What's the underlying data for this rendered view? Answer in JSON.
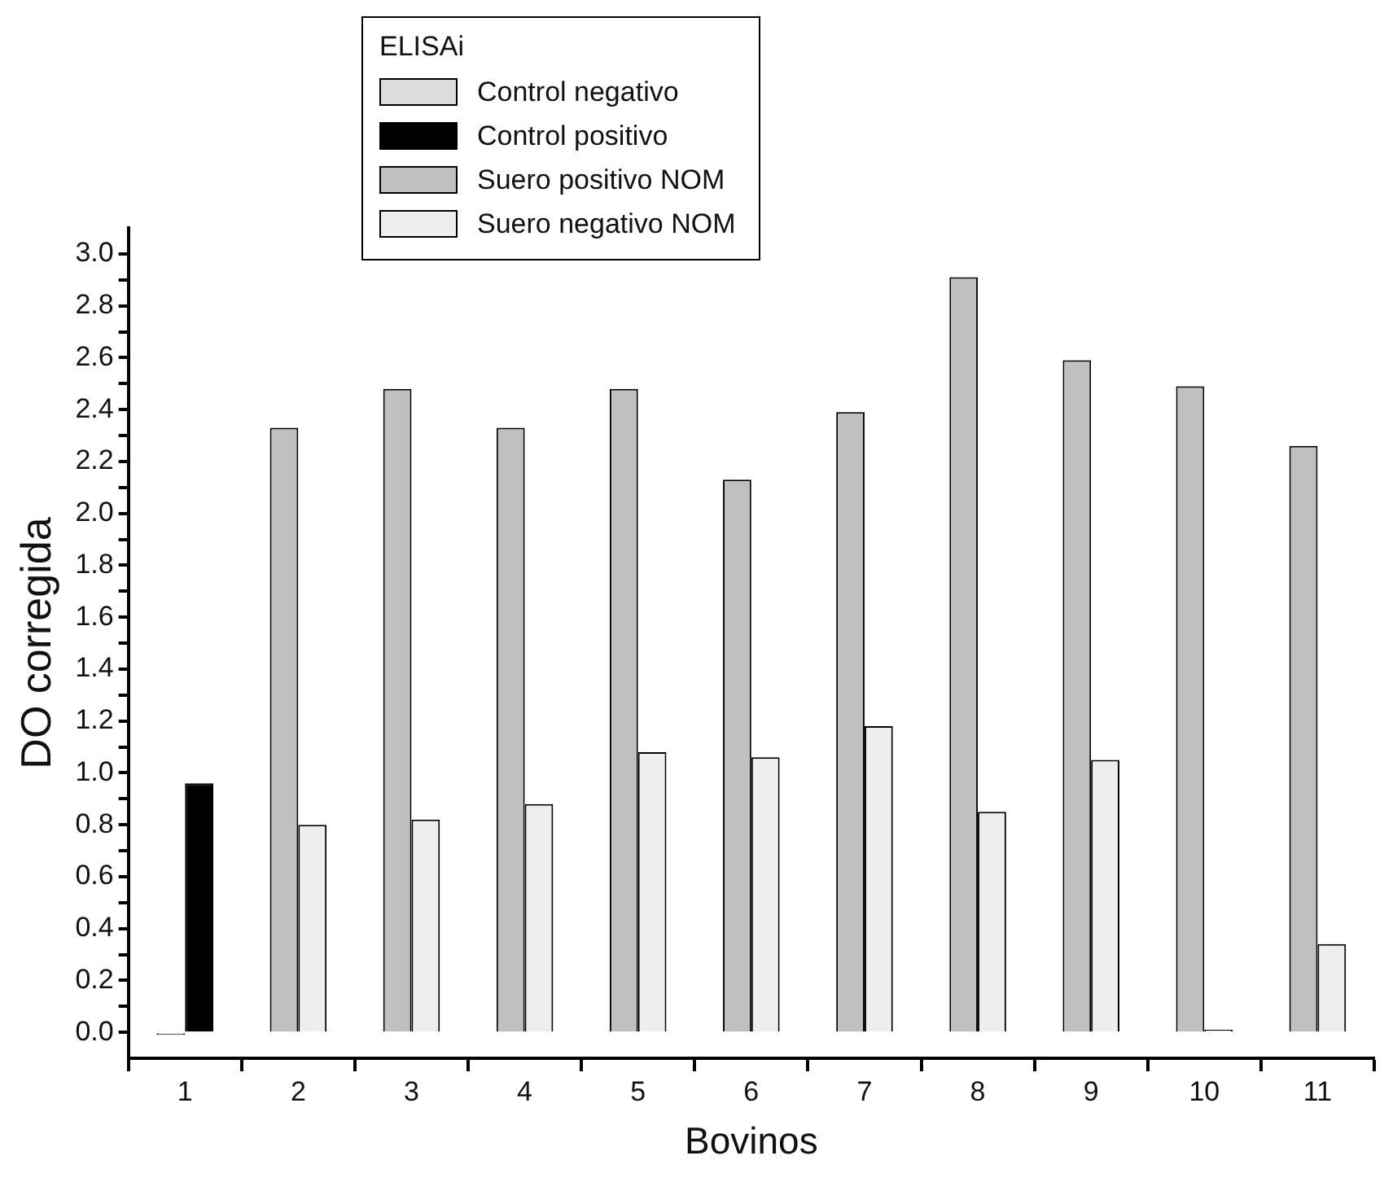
{
  "chart_data": {
    "type": "bar",
    "xlabel": "Bovinos",
    "ylabel": "DO corregida",
    "legend_title": "ELISAi",
    "legend": "top",
    "grid": false,
    "categories": [
      "1",
      "2",
      "3",
      "4",
      "5",
      "6",
      "7",
      "8",
      "9",
      "10",
      "11"
    ],
    "ylim": [
      -0.1,
      3.1
    ],
    "yticks": [
      {
        "value": 0,
        "label": "0.0"
      },
      {
        "value": 0.1,
        "label": null
      },
      {
        "value": 0.2,
        "label": "0.2"
      },
      {
        "value": 0.3,
        "label": null
      },
      {
        "value": 0.4,
        "label": "0.4"
      },
      {
        "value": 0.5,
        "label": null
      },
      {
        "value": 0.6,
        "label": "0.6"
      },
      {
        "value": 0.7,
        "label": null
      },
      {
        "value": 0.8,
        "label": "0.8"
      },
      {
        "value": 0.9,
        "label": null
      },
      {
        "value": 1,
        "label": "1.0"
      },
      {
        "value": 1.1,
        "label": null
      },
      {
        "value": 1.2,
        "label": "1.2"
      },
      {
        "value": 1.3,
        "label": null
      },
      {
        "value": 1.4,
        "label": "1.4"
      },
      {
        "value": 1.5,
        "label": null
      },
      {
        "value": 1.6,
        "label": "1.6"
      },
      {
        "value": 1.7,
        "label": null
      },
      {
        "value": 1.8,
        "label": "1.8"
      },
      {
        "value": 1.9,
        "label": null
      },
      {
        "value": 2,
        "label": "2.0"
      },
      {
        "value": 2.1,
        "label": null
      },
      {
        "value": 2.2,
        "label": "2.2"
      },
      {
        "value": 2.3,
        "label": null
      },
      {
        "value": 2.4,
        "label": "2.4"
      },
      {
        "value": 2.5,
        "label": null
      },
      {
        "value": 2.6,
        "label": "2.6"
      },
      {
        "value": 2.7,
        "label": null
      },
      {
        "value": 2.8,
        "label": "2.8"
      },
      {
        "value": 2.9,
        "label": null
      },
      {
        "value": 3,
        "label": "3.0"
      }
    ],
    "series": [
      {
        "name": "Control negativo",
        "color": "#dcdcdc",
        "values": [
          -0.01,
          null,
          null,
          null,
          null,
          null,
          null,
          null,
          null,
          null,
          null
        ]
      },
      {
        "name": "Control positivo",
        "color": "#000000",
        "values": [
          0.96,
          null,
          null,
          null,
          null,
          null,
          null,
          null,
          null,
          null,
          null
        ]
      },
      {
        "name": "Suero positivo NOM",
        "color": "#c0c0c0",
        "values": [
          null,
          2.33,
          2.48,
          2.33,
          2.48,
          2.13,
          2.39,
          2.91,
          2.59,
          2.49,
          2.26
        ]
      },
      {
        "name": "Suero negativo NOM",
        "color": "#eeeeee",
        "values": [
          null,
          0.8,
          0.82,
          0.88,
          1.08,
          1.06,
          1.18,
          0.85,
          1.05,
          0.01,
          0.34
        ]
      }
    ]
  }
}
